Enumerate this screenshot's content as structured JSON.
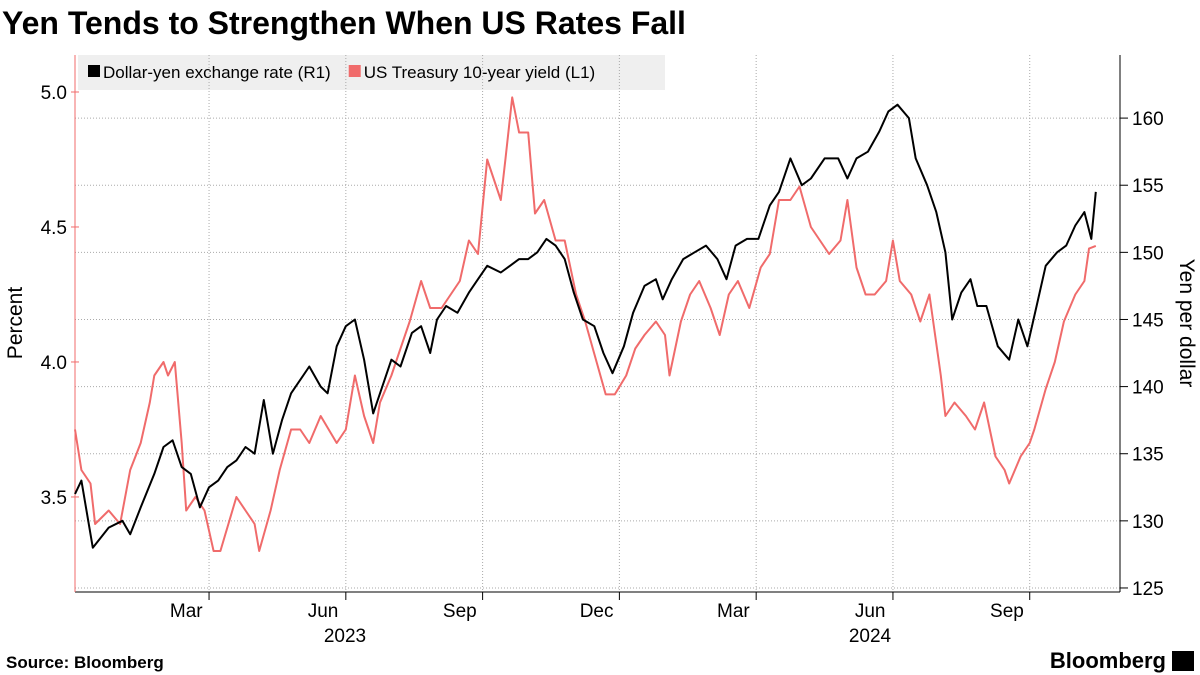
{
  "chart_data": {
    "type": "line",
    "title": "Yen Tends to Strengthen When US Rates Fall",
    "source": "Source: Bloomberg",
    "brand": "Bloomberg",
    "y_label": "Percent",
    "y2_label": "Yen per dollar",
    "x_group_labels": [
      "2023",
      "2024"
    ],
    "grid": true,
    "legend": "top-left",
    "xlim": [
      0.06,
      22.98
    ],
    "xticks": [
      {
        "value": 3,
        "label": "Mar"
      },
      {
        "value": 6,
        "label": "Jun"
      },
      {
        "value": 9,
        "label": "Sep"
      },
      {
        "value": 12,
        "label": "Dec"
      },
      {
        "value": 15,
        "label": "Mar"
      },
      {
        "value": 18,
        "label": "Jun"
      },
      {
        "value": 21,
        "label": "Sep"
      }
    ],
    "ylim": [
      3.148,
      5.137
    ],
    "yticks": [
      3.5,
      {
        "value": 4,
        "label": "4.0"
      },
      4.5,
      {
        "value": 5,
        "label": "5.0"
      }
    ],
    "y2lim": [
      124.7,
      164.7
    ],
    "y2ticks": [
      125,
      130,
      135,
      140,
      145,
      150,
      155,
      160
    ],
    "series": [
      {
        "name": "Dollar-yen exchange rate (R1)",
        "color": "#000000",
        "axis": "y2",
        "x": [
          0.06,
          0.2,
          0.45,
          0.8,
          1.1,
          1.27,
          1.5,
          1.8,
          2.0,
          2.2,
          2.4,
          2.6,
          2.8,
          3.0,
          3.2,
          3.4,
          3.6,
          3.8,
          4.0,
          4.2,
          4.4,
          4.6,
          4.8,
          5.0,
          5.2,
          5.45,
          5.6,
          5.8,
          6.0,
          6.2,
          6.4,
          6.6,
          6.8,
          7.0,
          7.2,
          7.45,
          7.65,
          7.85,
          8.0,
          8.2,
          8.45,
          8.7,
          8.9,
          9.1,
          9.4,
          9.6,
          9.8,
          10.0,
          10.2,
          10.4,
          10.6,
          10.8,
          11.0,
          11.2,
          11.45,
          11.65,
          11.85,
          12.1,
          12.3,
          12.55,
          12.8,
          12.95,
          13.15,
          13.4,
          13.65,
          13.9,
          14.15,
          14.35,
          14.55,
          14.8,
          15.05,
          15.3,
          15.5,
          15.75,
          16.0,
          16.2,
          16.5,
          16.8,
          17.0,
          17.2,
          17.45,
          17.7,
          17.9,
          18.1,
          18.35,
          18.5,
          18.75,
          18.95,
          19.15,
          19.3,
          19.5,
          19.7,
          19.85,
          20.05,
          20.3,
          20.55,
          20.75,
          20.95,
          21.15,
          21.35,
          21.6,
          21.8,
          22.0,
          22.2,
          22.35,
          22.45
        ],
        "values": [
          132,
          133,
          128,
          129.5,
          130,
          129,
          131,
          133.5,
          135.5,
          136,
          134,
          133.5,
          131,
          132.5,
          133,
          134,
          134.5,
          135.5,
          135,
          139,
          135,
          137.5,
          139.5,
          140.5,
          141.5,
          140,
          139.5,
          143,
          144.5,
          145,
          142,
          138,
          140,
          142,
          141.5,
          144,
          144.5,
          142.5,
          145,
          146,
          145.5,
          147,
          148,
          149,
          148.5,
          149,
          149.5,
          149.5,
          150,
          151,
          150.5,
          149.5,
          147,
          145,
          144.5,
          142.5,
          141,
          143,
          145.5,
          147.5,
          148,
          146.5,
          148,
          149.5,
          150,
          150.5,
          149.5,
          148,
          150.5,
          151,
          151,
          153.5,
          154.5,
          157,
          155,
          155.5,
          157,
          157,
          155.5,
          157,
          157.5,
          159,
          160.5,
          161,
          160,
          157,
          155,
          153,
          150,
          145,
          147,
          148,
          146,
          146,
          143,
          142,
          145,
          143,
          146,
          149,
          150,
          150.5,
          152,
          153,
          151,
          154.5
        ]
      },
      {
        "name": "US Treasury 10-year yield (L1)",
        "color": "#f06b6b",
        "axis": "y",
        "x": [
          0.06,
          0.2,
          0.4,
          0.5,
          0.8,
          1.05,
          1.27,
          1.5,
          1.7,
          1.8,
          2.0,
          2.1,
          2.25,
          2.4,
          2.5,
          2.7,
          2.9,
          3.1,
          3.25,
          3.6,
          3.8,
          4.0,
          4.1,
          4.35,
          4.55,
          4.8,
          5.0,
          5.2,
          5.45,
          5.8,
          6.0,
          6.2,
          6.4,
          6.6,
          6.75,
          7.0,
          7.2,
          7.4,
          7.65,
          7.85,
          8.1,
          8.3,
          8.5,
          8.7,
          8.9,
          9.1,
          9.4,
          9.5,
          9.65,
          9.8,
          10.0,
          10.15,
          10.35,
          10.6,
          10.8,
          11.05,
          11.25,
          11.5,
          11.7,
          11.9,
          12.15,
          12.35,
          12.55,
          12.8,
          13.0,
          13.1,
          13.35,
          13.55,
          13.75,
          14.0,
          14.2,
          14.4,
          14.6,
          14.85,
          15.1,
          15.3,
          15.5,
          15.75,
          15.95,
          16.2,
          16.4,
          16.6,
          16.85,
          17.0,
          17.2,
          17.4,
          17.6,
          17.85,
          18.0,
          18.15,
          18.4,
          18.6,
          18.8,
          19.05,
          19.15,
          19.35,
          19.6,
          19.8,
          20.0,
          20.25,
          20.45,
          20.55,
          20.8,
          21.0,
          21.1,
          21.35,
          21.55,
          21.75,
          22.0,
          22.2,
          22.3,
          22.45
        ],
        "values": [
          3.75,
          3.6,
          3.55,
          3.4,
          3.45,
          3.4,
          3.6,
          3.7,
          3.85,
          3.95,
          4.0,
          3.95,
          4.0,
          3.7,
          3.45,
          3.5,
          3.45,
          3.3,
          3.3,
          3.5,
          3.45,
          3.4,
          3.3,
          3.45,
          3.6,
          3.75,
          3.75,
          3.7,
          3.8,
          3.7,
          3.75,
          3.95,
          3.8,
          3.7,
          3.85,
          3.95,
          4.05,
          4.15,
          4.3,
          4.2,
          4.2,
          4.25,
          4.3,
          4.45,
          4.4,
          4.75,
          4.6,
          4.75,
          4.98,
          4.85,
          4.85,
          4.55,
          4.6,
          4.45,
          4.45,
          4.25,
          4.15,
          4.0,
          3.88,
          3.88,
          3.95,
          4.05,
          4.1,
          4.15,
          4.1,
          3.95,
          4.15,
          4.25,
          4.3,
          4.2,
          4.1,
          4.25,
          4.3,
          4.2,
          4.35,
          4.4,
          4.6,
          4.6,
          4.65,
          4.5,
          4.45,
          4.4,
          4.45,
          4.6,
          4.35,
          4.25,
          4.25,
          4.3,
          4.45,
          4.3,
          4.25,
          4.15,
          4.25,
          3.95,
          3.8,
          3.85,
          3.8,
          3.75,
          3.85,
          3.65,
          3.6,
          3.55,
          3.65,
          3.7,
          3.75,
          3.9,
          4.0,
          4.15,
          4.25,
          4.3,
          4.42,
          4.43
        ]
      }
    ]
  }
}
